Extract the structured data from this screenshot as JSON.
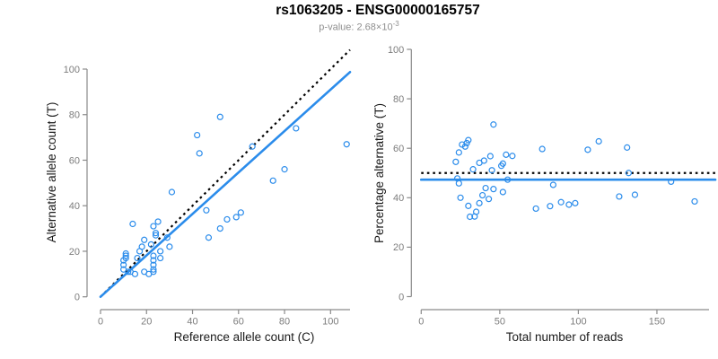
{
  "header": {
    "title": "rs1063205 - ENSG00000165757",
    "subtitle_prefix": "p-value: 2.68×10",
    "subtitle_exponent": "-3"
  },
  "colors": {
    "accent_blue": "#2b8ceb",
    "dotted_line": "#000000",
    "axis_line": "#8a8a8a",
    "tick_label": "#7d7d7d",
    "axis_title": "#1a1a1a",
    "subtitle_gray": "#8f8f8f"
  },
  "chart_data": [
    {
      "type": "scatter",
      "panel": "left",
      "xlabel": "Reference allele count (C)",
      "ylabel": "Alternative allele count (T)",
      "xlim": [
        0,
        108.5
      ],
      "ylim": [
        0,
        108.7
      ],
      "xticks": [
        0,
        20,
        40,
        60,
        80,
        100
      ],
      "yticks": [
        0,
        20,
        40,
        60,
        80,
        100
      ],
      "grid": false,
      "legend": "none",
      "points": [
        [
          52,
          79
        ],
        [
          42,
          71
        ],
        [
          85,
          74
        ],
        [
          107,
          67
        ],
        [
          66,
          66
        ],
        [
          43,
          63
        ],
        [
          80,
          56
        ],
        [
          75,
          51
        ],
        [
          31,
          46
        ],
        [
          46,
          38
        ],
        [
          61,
          37
        ],
        [
          59,
          35
        ],
        [
          55,
          34
        ],
        [
          52,
          30
        ],
        [
          47,
          26
        ],
        [
          14,
          32
        ],
        [
          25,
          33
        ],
        [
          23,
          31
        ],
        [
          29,
          26
        ],
        [
          30,
          22
        ],
        [
          19,
          25
        ],
        [
          24,
          28
        ],
        [
          24,
          27
        ],
        [
          22,
          23
        ],
        [
          18,
          22
        ],
        [
          17,
          20
        ],
        [
          16,
          17
        ],
        [
          11,
          19
        ],
        [
          11,
          18
        ],
        [
          10,
          16
        ],
        [
          10,
          14
        ],
        [
          11,
          17
        ],
        [
          10,
          12
        ],
        [
          13,
          11
        ],
        [
          12,
          11
        ],
        [
          15,
          10
        ],
        [
          19,
          11
        ],
        [
          21,
          10
        ],
        [
          23,
          11
        ],
        [
          23,
          12
        ],
        [
          23,
          14
        ],
        [
          23,
          16
        ],
        [
          23,
          18
        ],
        [
          26,
          17
        ],
        [
          26,
          20
        ]
      ],
      "lines": [
        {
          "name": "identity-line",
          "style": "dotted",
          "color": "#000000",
          "slope": 1,
          "intercept": 0
        },
        {
          "name": "fit-line",
          "style": "solid",
          "color": "#2b8ceb",
          "slope": 0.91,
          "intercept": 0
        }
      ]
    },
    {
      "type": "scatter",
      "panel": "right",
      "xlabel": "Total number of reads",
      "ylabel": "Percentage alternative (T)",
      "xlim": [
        0,
        187
      ],
      "ylim": [
        0,
        100
      ],
      "xticks": [
        0,
        50,
        100,
        150
      ],
      "yticks": [
        0,
        20,
        40,
        60,
        80,
        100
      ],
      "grid": false,
      "legend": "none",
      "points": [
        [
          131,
          60.3
        ],
        [
          113,
          62.8
        ],
        [
          159,
          46.5
        ],
        [
          174,
          38.5
        ],
        [
          132,
          50.0
        ],
        [
          106,
          59.4
        ],
        [
          136,
          41.2
        ],
        [
          126,
          40.5
        ],
        [
          77,
          59.7
        ],
        [
          84,
          45.2
        ],
        [
          98,
          37.8
        ],
        [
          94,
          37.2
        ],
        [
          89,
          38.2
        ],
        [
          82,
          36.6
        ],
        [
          73,
          35.6
        ],
        [
          46,
          69.6
        ],
        [
          58,
          56.9
        ],
        [
          54,
          57.4
        ],
        [
          55,
          47.3
        ],
        [
          52,
          42.3
        ],
        [
          44,
          56.8
        ],
        [
          52,
          53.8
        ],
        [
          51,
          52.9
        ],
        [
          45,
          51.1
        ],
        [
          40,
          55.0
        ],
        [
          37,
          54.1
        ],
        [
          33,
          51.5
        ],
        [
          30,
          63.3
        ],
        [
          29,
          62.1
        ],
        [
          26,
          61.5
        ],
        [
          24,
          58.3
        ],
        [
          28,
          60.7
        ],
        [
          22,
          54.5
        ],
        [
          24,
          45.8
        ],
        [
          23,
          47.8
        ],
        [
          25,
          40.0
        ],
        [
          30,
          36.7
        ],
        [
          31,
          32.3
        ],
        [
          34,
          32.4
        ],
        [
          35,
          34.3
        ],
        [
          37,
          37.8
        ],
        [
          39,
          41.0
        ],
        [
          41,
          43.9
        ],
        [
          43,
          39.5
        ],
        [
          46,
          43.5
        ]
      ],
      "lines": [
        {
          "name": "expected-50pct-line",
          "style": "dotted",
          "color": "#000000",
          "y": 50
        },
        {
          "name": "fit-line",
          "style": "solid",
          "color": "#2b8ceb",
          "y": 47.3
        }
      ]
    }
  ]
}
